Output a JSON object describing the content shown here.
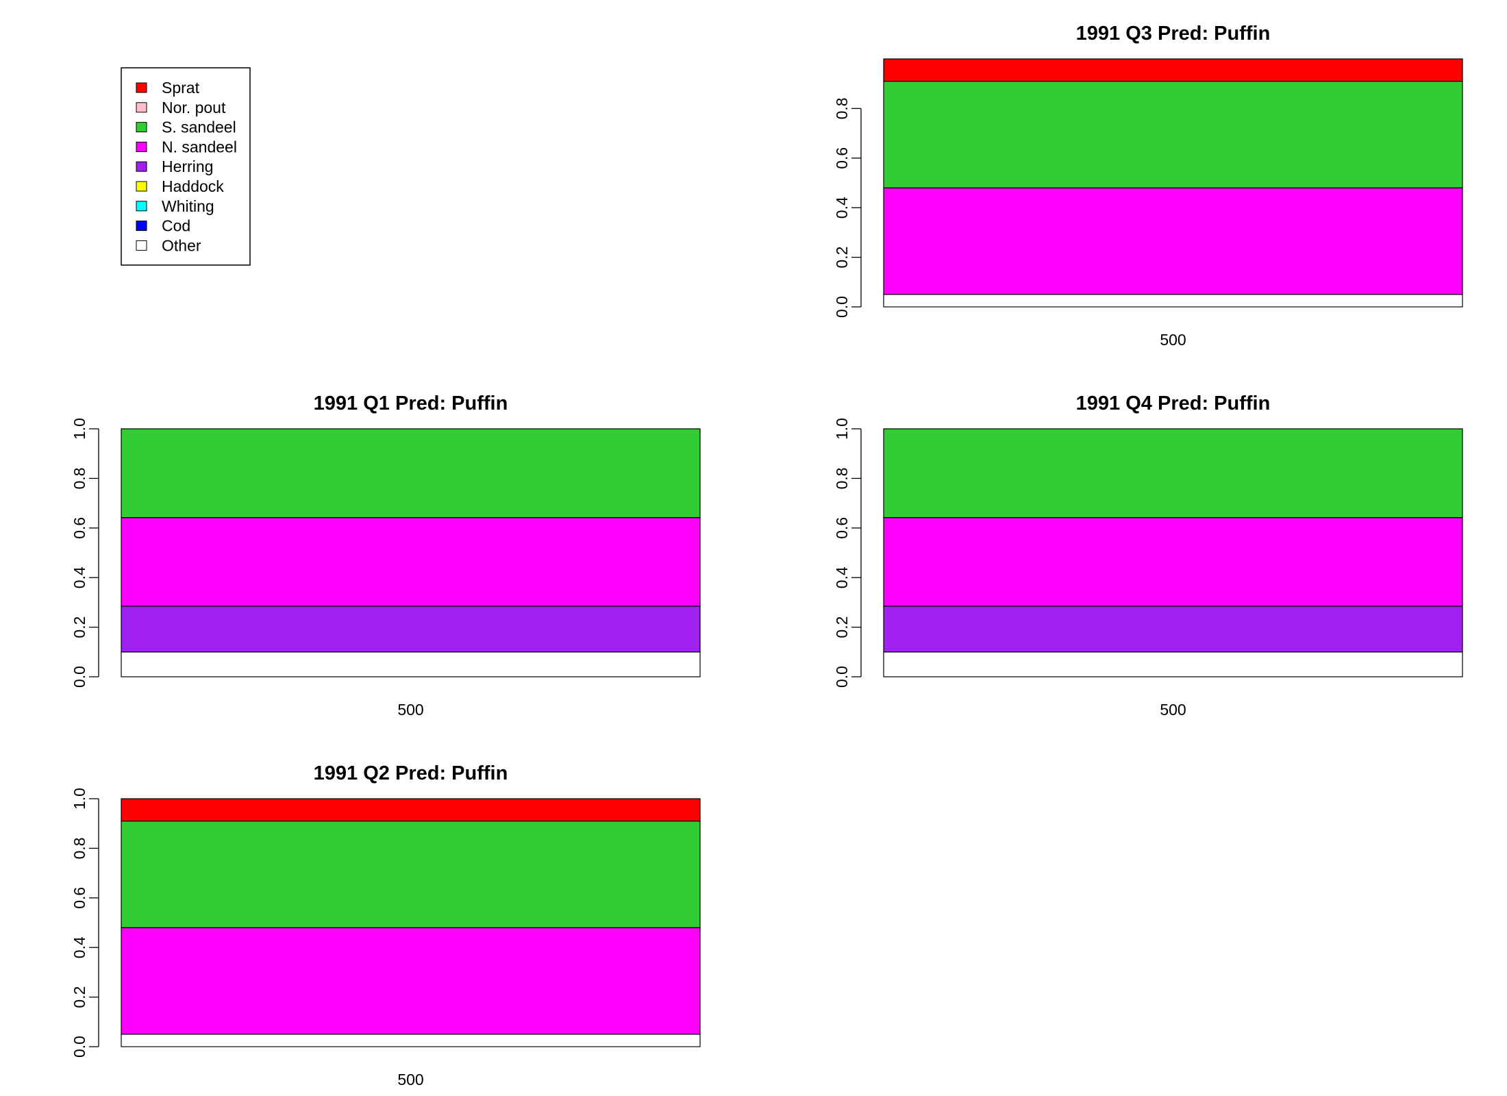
{
  "legend": {
    "entries": [
      {
        "label": "Sprat",
        "color": "#FF0000"
      },
      {
        "label": "Nor. pout",
        "color": "#FFC0CB"
      },
      {
        "label": "S. sandeel",
        "color": "#32CD32"
      },
      {
        "label": "N. sandeel",
        "color": "#FF00FF"
      },
      {
        "label": "Herring",
        "color": "#A020F0"
      },
      {
        "label": "Haddock",
        "color": "#FFFF00"
      },
      {
        "label": "Whiting",
        "color": "#00FFFF"
      },
      {
        "label": "Cod",
        "color": "#0000FF"
      },
      {
        "label": "Other",
        "color": "#FFFFFF"
      }
    ]
  },
  "chart_data": [
    {
      "type": "bar",
      "stacked": true,
      "title": "1991 Q3  Pred: Puffin",
      "categories": [
        "500"
      ],
      "ylim": [
        0,
        1
      ],
      "yticks": [
        "0.0",
        "0.2",
        "0.4",
        "0.6",
        "0.8"
      ],
      "series": [
        {
          "name": "Other",
          "values": [
            0.05
          ]
        },
        {
          "name": "N. sandeel",
          "values": [
            0.43
          ]
        },
        {
          "name": "S. sandeel",
          "values": [
            0.43
          ]
        },
        {
          "name": "Sprat",
          "values": [
            0.09
          ]
        }
      ]
    },
    {
      "type": "bar",
      "stacked": true,
      "title": "1991 Q1  Pred: Puffin",
      "categories": [
        "500"
      ],
      "ylim": [
        0,
        1
      ],
      "yticks": [
        "0.0",
        "0.2",
        "0.4",
        "0.6",
        "0.8",
        "1.0"
      ],
      "series": [
        {
          "name": "Other",
          "values": [
            0.1
          ]
        },
        {
          "name": "Herring",
          "values": [
            0.185
          ]
        },
        {
          "name": "N. sandeel",
          "values": [
            0.357
          ]
        },
        {
          "name": "S. sandeel",
          "values": [
            0.358
          ]
        }
      ]
    },
    {
      "type": "bar",
      "stacked": true,
      "title": "1991 Q4  Pred: Puffin",
      "categories": [
        "500"
      ],
      "ylim": [
        0,
        1
      ],
      "yticks": [
        "0.0",
        "0.2",
        "0.4",
        "0.6",
        "0.8",
        "1.0"
      ],
      "series": [
        {
          "name": "Other",
          "values": [
            0.1
          ]
        },
        {
          "name": "Herring",
          "values": [
            0.185
          ]
        },
        {
          "name": "N. sandeel",
          "values": [
            0.357
          ]
        },
        {
          "name": "S. sandeel",
          "values": [
            0.358
          ]
        }
      ]
    },
    {
      "type": "bar",
      "stacked": true,
      "title": "1991 Q2  Pred: Puffin",
      "categories": [
        "500"
      ],
      "ylim": [
        0,
        1
      ],
      "yticks": [
        "0.0",
        "0.2",
        "0.4",
        "0.6",
        "0.8",
        "1.0"
      ],
      "series": [
        {
          "name": "Other",
          "values": [
            0.05
          ]
        },
        {
          "name": "N. sandeel",
          "values": [
            0.43
          ]
        },
        {
          "name": "S. sandeel",
          "values": [
            0.43
          ]
        },
        {
          "name": "Sprat",
          "values": [
            0.09
          ]
        }
      ]
    }
  ]
}
